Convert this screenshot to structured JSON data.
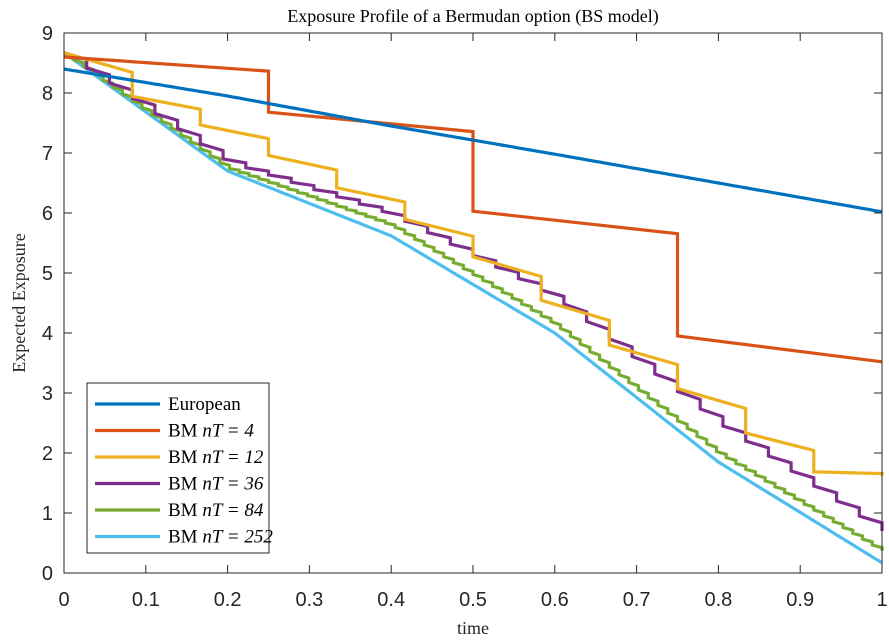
{
  "chart_data": {
    "type": "line",
    "title": "Exposure Profile of a Bermudan option (BS model)",
    "xlabel": "time",
    "ylabel": "Expected Exposure",
    "xlim": [
      0,
      1
    ],
    "ylim": [
      0,
      9
    ],
    "xticks": [
      "0",
      "0.1",
      "0.2",
      "0.3",
      "0.4",
      "0.5",
      "0.6",
      "0.7",
      "0.8",
      "0.9",
      "1"
    ],
    "yticks": [
      "0",
      "1",
      "2",
      "3",
      "4",
      "5",
      "6",
      "7",
      "8",
      "9"
    ],
    "grid": false,
    "legend_position": "bottom-left",
    "series": [
      {
        "name": "European",
        "legend_prefix": "European",
        "legend_math": "",
        "color": "#0072BD",
        "exercise_dates": 0,
        "values": [
          8.4,
          7.95,
          7.45,
          6.98,
          6.5,
          6.02
        ]
      },
      {
        "name": "BM nT = 4",
        "legend_prefix": "BM ",
        "legend_math": "nT = 4",
        "color": "#D95319",
        "exercise_dates": 4,
        "values": [
          8.6,
          7.68,
          6.03,
          3.95,
          3.52
        ]
      },
      {
        "name": "BM nT = 12",
        "legend_prefix": "BM ",
        "legend_math": "nT = 12",
        "color": "#EDB120",
        "exercise_dates": 12,
        "values": [
          8.67,
          7.8,
          7.3,
          6.62,
          6.02,
          5.27,
          4.4,
          3.5,
          2.65,
          1.7,
          1.62
        ]
      },
      {
        "name": "BM nT = 36",
        "legend_prefix": "BM ",
        "legend_math": "nT = 36",
        "color": "#7E2F8E",
        "exercise_dates": 36,
        "values": [
          8.67,
          6.85,
          5.98,
          4.6,
          2.5,
          0.7
        ]
      },
      {
        "name": "BM nT = 84",
        "legend_prefix": "BM ",
        "legend_math": "nT = 84",
        "color": "#77AC30",
        "exercise_dates": 84,
        "values": [
          8.67,
          6.75,
          5.8,
          4.15,
          2.0,
          0.37
        ]
      },
      {
        "name": "BM nT = 252",
        "legend_prefix": "BM ",
        "legend_math": "nT = 252",
        "color": "#4DBEEE",
        "exercise_dates": 252,
        "values": [
          8.67,
          6.7,
          5.62,
          4.0,
          1.85,
          0.17
        ]
      }
    ]
  }
}
